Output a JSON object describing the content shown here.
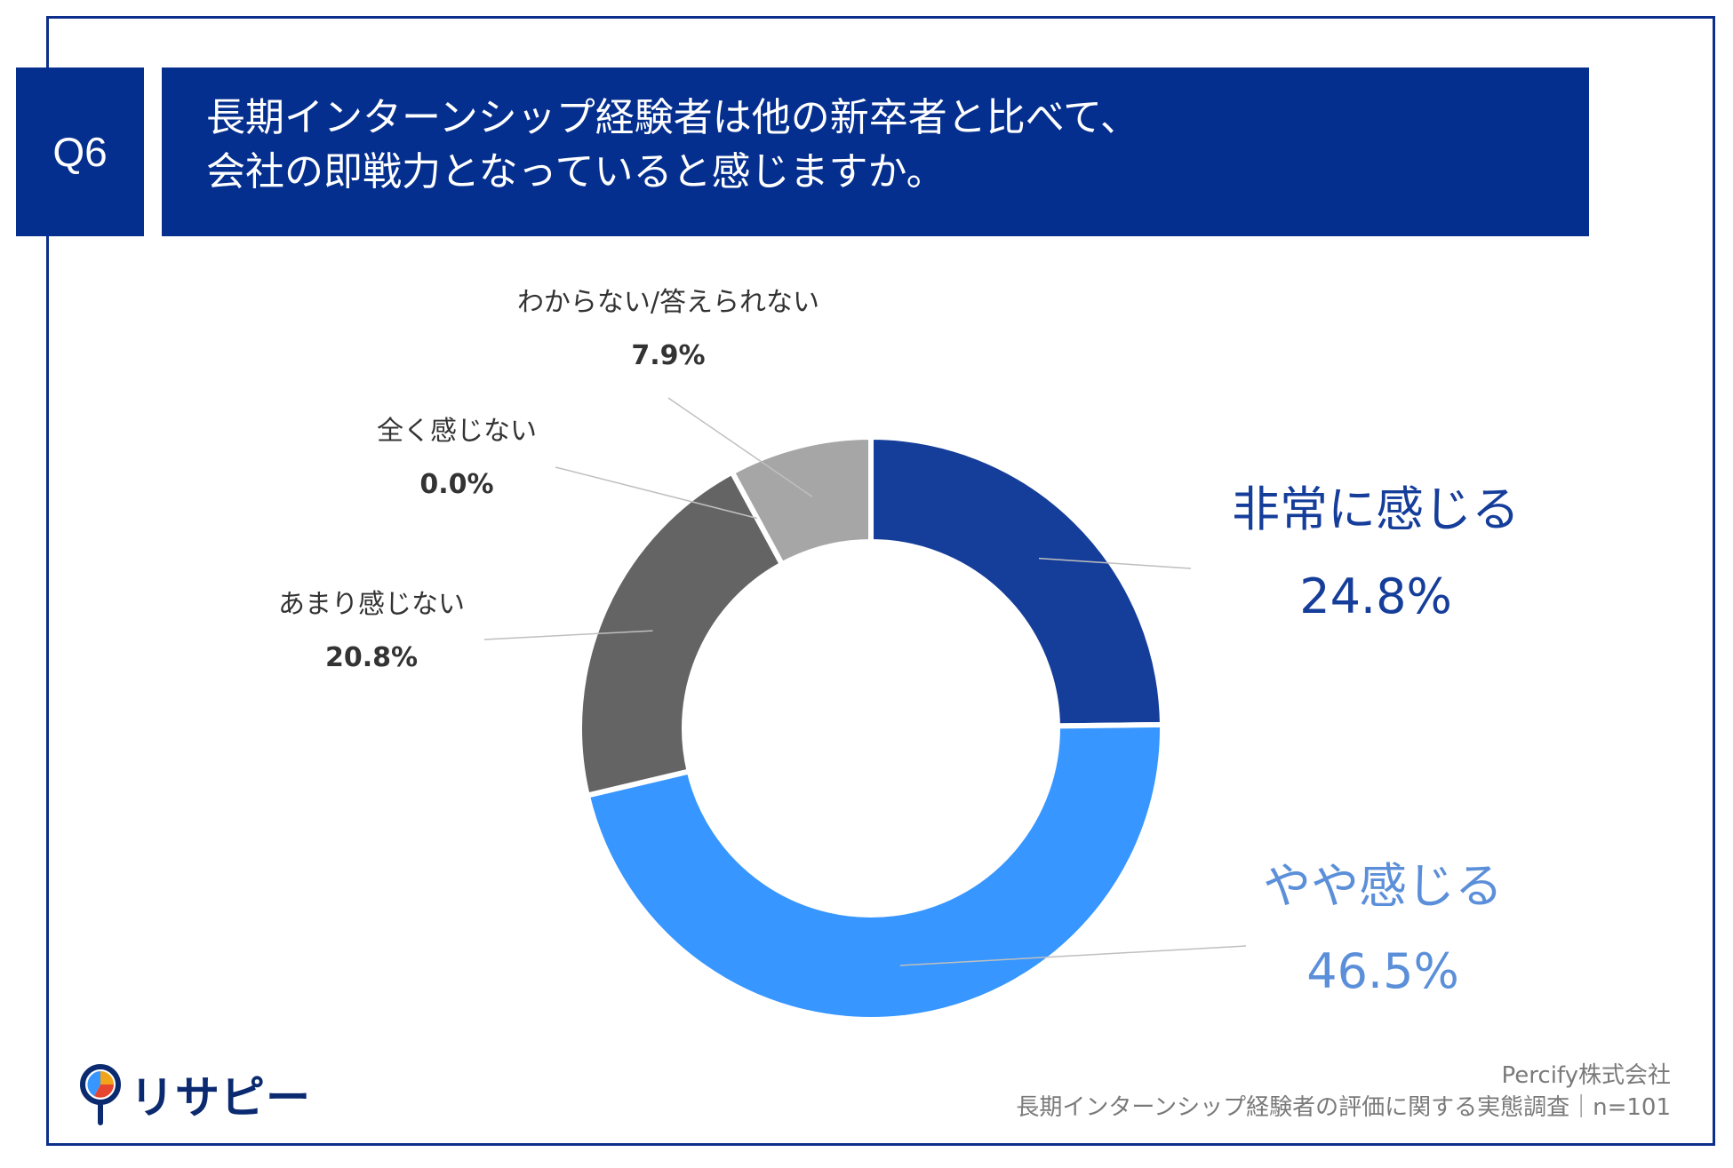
{
  "header": {
    "question_tag": "Q6",
    "title_line1": "長期インターンシップ経験者は他の新卒者と比べて、",
    "title_line2": "会社の即戦力となっていると感じますか。"
  },
  "chart_data": {
    "type": "pie",
    "donut": true,
    "title": "長期インターンシップ経験者は他の新卒者と比べて、会社の即戦力となっていると感じますか。",
    "categories": [
      "非常に感じる",
      "やや感じる",
      "あまり感じない",
      "全く感じない",
      "わからない/答えられない"
    ],
    "values": [
      24.8,
      46.5,
      20.8,
      0.0,
      7.9
    ],
    "value_labels": [
      "24.8%",
      "46.5%",
      "20.8%",
      "0.0%",
      "7.9%"
    ],
    "colors": [
      "#153d9a",
      "#3796ff",
      "#646464",
      "#4a4a4a",
      "#a6a6a6"
    ],
    "label_colors": [
      "#153d9a",
      "#5b8fd9",
      "#333333",
      "#333333",
      "#333333"
    ]
  },
  "footer": {
    "company": "Percify株式会社",
    "survey": "長期インターンシップ経験者の評価に関する実態調査｜n=101"
  },
  "logo": {
    "text": "リサピー",
    "icon": "pin-pie-icon"
  }
}
